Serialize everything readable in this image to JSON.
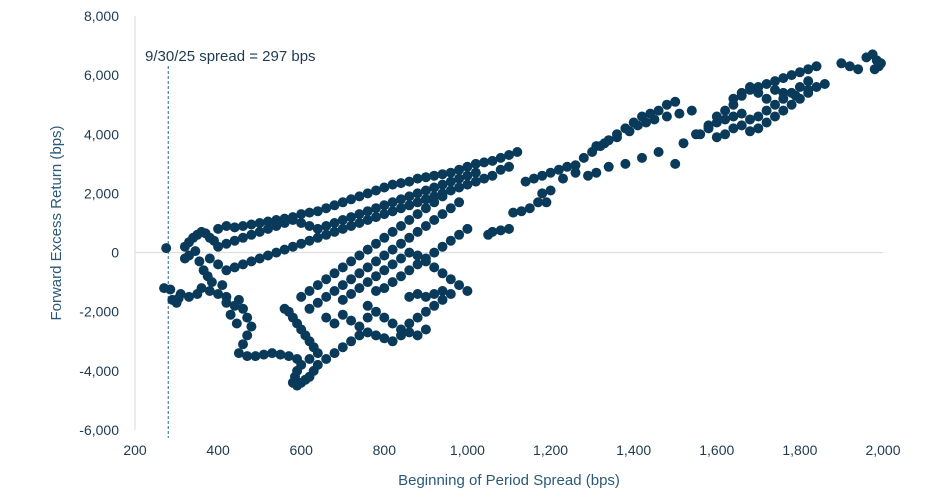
{
  "chart_data": {
    "type": "scatter",
    "title": "",
    "xlabel": "Beginning of Period Spread (bps)",
    "ylabel": "Forward Excess Return (bps)",
    "xlim": [
      200,
      2000
    ],
    "ylim": [
      -6000,
      8000
    ],
    "x_ticks": [
      200,
      400,
      600,
      800,
      1000,
      1200,
      1400,
      1600,
      1800,
      2000
    ],
    "x_tick_labels": [
      "200",
      "400",
      "600",
      "800",
      "1,000",
      "1,200",
      "1,400",
      "1,600",
      "1,800",
      "2,000"
    ],
    "y_ticks": [
      -6000,
      -4000,
      -2000,
      0,
      2000,
      4000,
      6000,
      8000
    ],
    "y_tick_labels": [
      "-6,000",
      "-4,000",
      "-2,000",
      "0",
      "2,000",
      "4,000",
      "6,000",
      "8,000"
    ],
    "grid": false,
    "legend": "none",
    "marker_color": "#0a3a5a",
    "annotation": {
      "text": "9/30/25 spread = 297 bps",
      "x": 280,
      "line_style": "dashed",
      "color": "#2b6a8f"
    },
    "points": [
      [
        275,
        150
      ],
      [
        285,
        -1250
      ],
      [
        270,
        -1200
      ],
      [
        290,
        -1600
      ],
      [
        300,
        -1700
      ],
      [
        305,
        -1550
      ],
      [
        310,
        -1400
      ],
      [
        320,
        200
      ],
      [
        330,
        350
      ],
      [
        340,
        500
      ],
      [
        350,
        600
      ],
      [
        360,
        700
      ],
      [
        370,
        650
      ],
      [
        380,
        500
      ],
      [
        390,
        400
      ],
      [
        320,
        -200
      ],
      [
        330,
        -100
      ],
      [
        345,
        50
      ],
      [
        355,
        -300
      ],
      [
        365,
        -600
      ],
      [
        375,
        -800
      ],
      [
        385,
        -1000
      ],
      [
        330,
        -1500
      ],
      [
        350,
        -1400
      ],
      [
        360,
        -1200
      ],
      [
        380,
        -1300
      ],
      [
        400,
        -1400
      ],
      [
        410,
        -1100
      ],
      [
        420,
        -1500
      ],
      [
        400,
        800
      ],
      [
        420,
        900
      ],
      [
        440,
        850
      ],
      [
        460,
        900
      ],
      [
        480,
        950
      ],
      [
        500,
        1000
      ],
      [
        520,
        1050
      ],
      [
        540,
        1100
      ],
      [
        560,
        1150
      ],
      [
        580,
        1200
      ],
      [
        600,
        1300
      ],
      [
        620,
        1350
      ],
      [
        640,
        1400
      ],
      [
        660,
        1500
      ],
      [
        680,
        1600
      ],
      [
        700,
        1700
      ],
      [
        720,
        1800
      ],
      [
        740,
        1900
      ],
      [
        760,
        2000
      ],
      [
        780,
        2100
      ],
      [
        800,
        2200
      ],
      [
        820,
        2300
      ],
      [
        840,
        2350
      ],
      [
        860,
        2400
      ],
      [
        880,
        2500
      ],
      [
        900,
        2550
      ],
      [
        920,
        2600
      ],
      [
        940,
        2650
      ],
      [
        960,
        2700
      ],
      [
        980,
        2800
      ],
      [
        1000,
        2900
      ],
      [
        1020,
        3000
      ],
      [
        1040,
        3050
      ],
      [
        1060,
        3100
      ],
      [
        1080,
        3200
      ],
      [
        1100,
        3300
      ],
      [
        1120,
        3400
      ],
      [
        1080,
        2800
      ],
      [
        1100,
        2900
      ],
      [
        1060,
        2600
      ],
      [
        1040,
        2500
      ],
      [
        1020,
        2400
      ],
      [
        1000,
        2300
      ],
      [
        980,
        2200
      ],
      [
        960,
        2100
      ],
      [
        940,
        2000
      ],
      [
        920,
        1900
      ],
      [
        900,
        1800
      ],
      [
        880,
        1700
      ],
      [
        860,
        1600
      ],
      [
        840,
        1500
      ],
      [
        820,
        1400
      ],
      [
        800,
        1300
      ],
      [
        780,
        1200
      ],
      [
        760,
        1100
      ],
      [
        740,
        1000
      ],
      [
        720,
        900
      ],
      [
        700,
        800
      ],
      [
        680,
        700
      ],
      [
        660,
        600
      ],
      [
        640,
        500
      ],
      [
        620,
        400
      ],
      [
        600,
        300
      ],
      [
        580,
        200
      ],
      [
        560,
        100
      ],
      [
        540,
        0
      ],
      [
        520,
        -100
      ],
      [
        500,
        -200
      ],
      [
        480,
        -300
      ],
      [
        460,
        -400
      ],
      [
        440,
        -500
      ],
      [
        420,
        -600
      ],
      [
        400,
        -400
      ],
      [
        380,
        -200
      ],
      [
        400,
        200
      ],
      [
        420,
        300
      ],
      [
        440,
        400
      ],
      [
        460,
        500
      ],
      [
        480,
        600
      ],
      [
        500,
        700
      ],
      [
        520,
        800
      ],
      [
        540,
        900
      ],
      [
        560,
        1000
      ],
      [
        580,
        1100
      ],
      [
        600,
        1000
      ],
      [
        620,
        900
      ],
      [
        640,
        800
      ],
      [
        660,
        900
      ],
      [
        680,
        1000
      ],
      [
        700,
        1100
      ],
      [
        720,
        1200
      ],
      [
        740,
        1300
      ],
      [
        760,
        1400
      ],
      [
        780,
        1500
      ],
      [
        800,
        1600
      ],
      [
        820,
        1700
      ],
      [
        840,
        1800
      ],
      [
        860,
        1900
      ],
      [
        880,
        2000
      ],
      [
        900,
        2100
      ],
      [
        920,
        2200
      ],
      [
        940,
        2300
      ],
      [
        960,
        2400
      ],
      [
        980,
        2500
      ],
      [
        1000,
        2600
      ],
      [
        1020,
        2700
      ],
      [
        450,
        -1600
      ],
      [
        460,
        -1900
      ],
      [
        470,
        -2200
      ],
      [
        480,
        -2500
      ],
      [
        470,
        -2800
      ],
      [
        460,
        -3100
      ],
      [
        450,
        -3400
      ],
      [
        470,
        -3500
      ],
      [
        490,
        -3500
      ],
      [
        510,
        -3450
      ],
      [
        530,
        -3400
      ],
      [
        550,
        -3450
      ],
      [
        570,
        -3500
      ],
      [
        590,
        -3600
      ],
      [
        440,
        -1800
      ],
      [
        430,
        -2100
      ],
      [
        445,
        -2400
      ],
      [
        420,
        -1700
      ],
      [
        560,
        -1900
      ],
      [
        570,
        -2000
      ],
      [
        580,
        -2200
      ],
      [
        590,
        -2400
      ],
      [
        600,
        -2600
      ],
      [
        610,
        -2800
      ],
      [
        620,
        -3000
      ],
      [
        630,
        -3200
      ],
      [
        640,
        -3400
      ],
      [
        620,
        -3600
      ],
      [
        600,
        -3800
      ],
      [
        590,
        -4000
      ],
      [
        585,
        -4200
      ],
      [
        580,
        -4400
      ],
      [
        590,
        -4500
      ],
      [
        600,
        -4400
      ],
      [
        610,
        -4300
      ],
      [
        620,
        -4200
      ],
      [
        630,
        -4000
      ],
      [
        640,
        -3800
      ],
      [
        660,
        -3600
      ],
      [
        680,
        -3400
      ],
      [
        700,
        -3200
      ],
      [
        720,
        -3000
      ],
      [
        740,
        -2800
      ],
      [
        760,
        -2700
      ],
      [
        780,
        -2800
      ],
      [
        800,
        -2900
      ],
      [
        820,
        -3000
      ],
      [
        840,
        -2800
      ],
      [
        860,
        -2700
      ],
      [
        880,
        -2800
      ],
      [
        900,
        -2600
      ],
      [
        600,
        -1500
      ],
      [
        620,
        -1300
      ],
      [
        640,
        -1100
      ],
      [
        660,
        -900
      ],
      [
        680,
        -700
      ],
      [
        700,
        -500
      ],
      [
        720,
        -300
      ],
      [
        740,
        -100
      ],
      [
        760,
        100
      ],
      [
        780,
        300
      ],
      [
        800,
        500
      ],
      [
        820,
        700
      ],
      [
        840,
        900
      ],
      [
        860,
        1100
      ],
      [
        880,
        1300
      ],
      [
        900,
        1500
      ],
      [
        920,
        1700
      ],
      [
        940,
        1900
      ],
      [
        620,
        -1900
      ],
      [
        640,
        -1700
      ],
      [
        660,
        -1500
      ],
      [
        680,
        -1300
      ],
      [
        700,
        -1100
      ],
      [
        720,
        -900
      ],
      [
        740,
        -700
      ],
      [
        760,
        -500
      ],
      [
        780,
        -300
      ],
      [
        800,
        -100
      ],
      [
        820,
        100
      ],
      [
        840,
        300
      ],
      [
        860,
        500
      ],
      [
        880,
        700
      ],
      [
        900,
        900
      ],
      [
        920,
        1100
      ],
      [
        940,
        1300
      ],
      [
        960,
        1500
      ],
      [
        980,
        1700
      ],
      [
        700,
        -1600
      ],
      [
        720,
        -1400
      ],
      [
        740,
        -1200
      ],
      [
        760,
        -1000
      ],
      [
        780,
        -800
      ],
      [
        800,
        -600
      ],
      [
        820,
        -400
      ],
      [
        840,
        -200
      ],
      [
        860,
        0
      ],
      [
        880,
        -100
      ],
      [
        900,
        -300
      ],
      [
        920,
        -500
      ],
      [
        940,
        -700
      ],
      [
        960,
        -900
      ],
      [
        980,
        -1100
      ],
      [
        1000,
        -1300
      ],
      [
        960,
        -1400
      ],
      [
        940,
        -1300
      ],
      [
        920,
        -1400
      ],
      [
        900,
        -1500
      ],
      [
        880,
        -1400
      ],
      [
        860,
        -1500
      ],
      [
        760,
        -1800
      ],
      [
        780,
        -2000
      ],
      [
        800,
        -2200
      ],
      [
        820,
        -2400
      ],
      [
        840,
        -2600
      ],
      [
        860,
        -2400
      ],
      [
        880,
        -2200
      ],
      [
        900,
        -2000
      ],
      [
        920,
        -1800
      ],
      [
        940,
        -1600
      ],
      [
        780,
        -1300
      ],
      [
        800,
        -1200
      ],
      [
        820,
        -1000
      ],
      [
        840,
        -800
      ],
      [
        860,
        -600
      ],
      [
        880,
        -400
      ],
      [
        900,
        -200
      ],
      [
        920,
        0
      ],
      [
        940,
        200
      ],
      [
        960,
        400
      ],
      [
        980,
        600
      ],
      [
        1000,
        800
      ],
      [
        700,
        -2100
      ],
      [
        720,
        -2300
      ],
      [
        740,
        -2500
      ],
      [
        760,
        -2200
      ],
      [
        680,
        -2400
      ],
      [
        660,
        -2200
      ],
      [
        1050,
        600
      ],
      [
        1080,
        750
      ],
      [
        1100,
        800
      ],
      [
        1060,
        700
      ],
      [
        1110,
        1350
      ],
      [
        1130,
        1400
      ],
      [
        1150,
        1500
      ],
      [
        1170,
        1700
      ],
      [
        1190,
        1700
      ],
      [
        1140,
        2400
      ],
      [
        1160,
        2500
      ],
      [
        1180,
        2600
      ],
      [
        1200,
        2700
      ],
      [
        1220,
        2800
      ],
      [
        1240,
        2900
      ],
      [
        1260,
        2950
      ],
      [
        1280,
        3200
      ],
      [
        1300,
        3400
      ],
      [
        1320,
        3600
      ],
      [
        1340,
        3800
      ],
      [
        1360,
        4000
      ],
      [
        1380,
        4200
      ],
      [
        1400,
        4400
      ],
      [
        1420,
        4600
      ],
      [
        1440,
        4700
      ],
      [
        1460,
        4800
      ],
      [
        1480,
        5000
      ],
      [
        1500,
        5100
      ],
      [
        1180,
        2000
      ],
      [
        1200,
        2100
      ],
      [
        1230,
        2500
      ],
      [
        1260,
        2700
      ],
      [
        1290,
        2600
      ],
      [
        1310,
        2700
      ],
      [
        1340,
        2900
      ],
      [
        1380,
        3000
      ],
      [
        1420,
        3200
      ],
      [
        1460,
        3400
      ],
      [
        1500,
        3000
      ],
      [
        1520,
        3700
      ],
      [
        1550,
        4000
      ],
      [
        1580,
        4300
      ],
      [
        1600,
        4600
      ],
      [
        1620,
        4800
      ],
      [
        1640,
        5000
      ],
      [
        1660,
        5300
      ],
      [
        1680,
        5500
      ],
      [
        1700,
        5600
      ],
      [
        1720,
        5700
      ],
      [
        1740,
        5800
      ],
      [
        1760,
        5900
      ],
      [
        1780,
        6000
      ],
      [
        1800,
        6100
      ],
      [
        1820,
        6200
      ],
      [
        1840,
        6300
      ],
      [
        1560,
        4000
      ],
      [
        1580,
        4200
      ],
      [
        1600,
        4400
      ],
      [
        1620,
        4500
      ],
      [
        1640,
        4600
      ],
      [
        1660,
        4700
      ],
      [
        1680,
        4500
      ],
      [
        1700,
        4600
      ],
      [
        1720,
        4800
      ],
      [
        1740,
        5000
      ],
      [
        1760,
        5200
      ],
      [
        1780,
        5400
      ],
      [
        1800,
        5600
      ],
      [
        1820,
        5800
      ],
      [
        1600,
        3900
      ],
      [
        1620,
        4000
      ],
      [
        1640,
        4200
      ],
      [
        1660,
        4300
      ],
      [
        1680,
        4100
      ],
      [
        1700,
        4200
      ],
      [
        1720,
        4400
      ],
      [
        1740,
        4600
      ],
      [
        1760,
        4800
      ],
      [
        1780,
        5000
      ],
      [
        1800,
        5200
      ],
      [
        1820,
        5400
      ],
      [
        1840,
        5600
      ],
      [
        1640,
        5200
      ],
      [
        1660,
        5400
      ],
      [
        1680,
        5600
      ],
      [
        1700,
        5400
      ],
      [
        1720,
        5200
      ],
      [
        1740,
        5500
      ],
      [
        1760,
        5400
      ],
      [
        1790,
        5300
      ],
      [
        1820,
        5500
      ],
      [
        1860,
        5700
      ],
      [
        1900,
        6400
      ],
      [
        1920,
        6300
      ],
      [
        1940,
        6200
      ],
      [
        1960,
        6600
      ],
      [
        1975,
        6700
      ],
      [
        1985,
        6500
      ],
      [
        1990,
        6300
      ],
      [
        1980,
        6200
      ],
      [
        1995,
        6400
      ],
      [
        1310,
        3600
      ],
      [
        1330,
        3700
      ],
      [
        1360,
        3900
      ],
      [
        1390,
        4100
      ],
      [
        1410,
        4300
      ],
      [
        1430,
        4400
      ],
      [
        1450,
        4500
      ],
      [
        1480,
        4600
      ],
      [
        1510,
        4700
      ],
      [
        1540,
        4800
      ]
    ]
  }
}
